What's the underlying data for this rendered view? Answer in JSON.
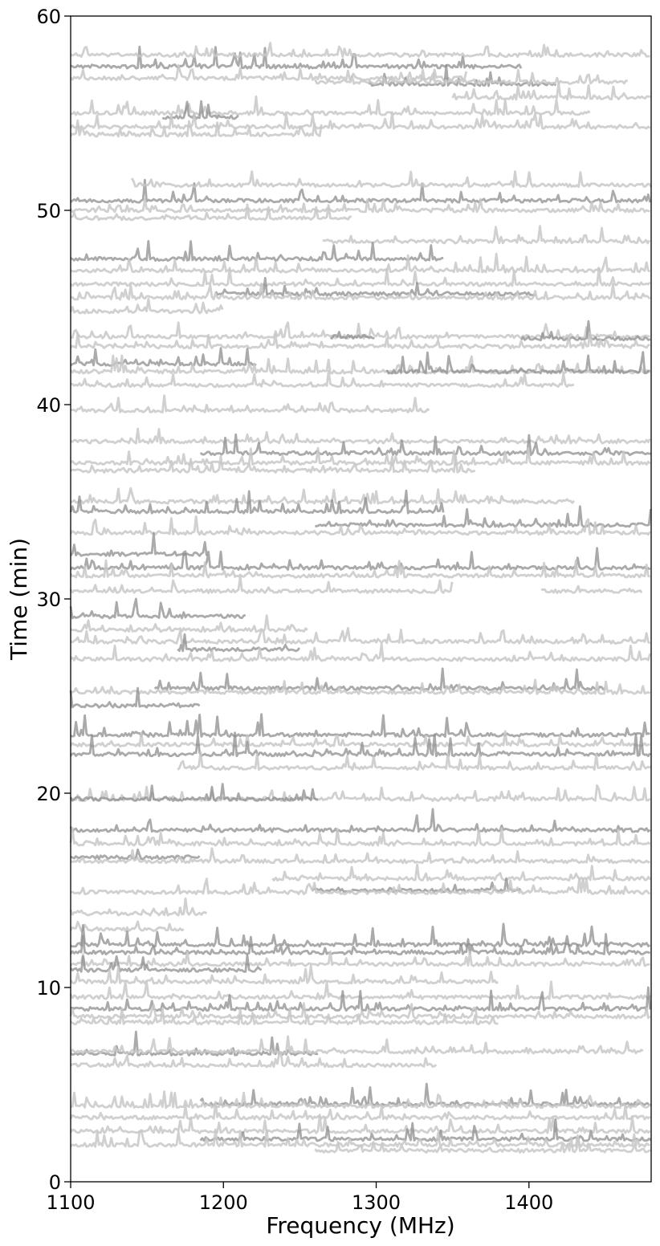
{
  "chart_data": {
    "type": "line",
    "title": "",
    "xlabel": "Frequency (MHz)",
    "ylabel": "Time (min)",
    "xlim": [
      1100,
      1480
    ],
    "ylim": [
      0,
      60
    ],
    "xticks": [
      1100,
      1200,
      1300,
      1400
    ],
    "yticks": [
      0,
      10,
      20,
      30,
      40,
      50,
      60
    ],
    "grid": false,
    "legend": "none",
    "colors": {
      "light_trace": "#c8c8c8",
      "dark_trace": "#8e8e8e",
      "axis": "#000000"
    },
    "series": [
      {
        "freq_range": [
          1100,
          1395
        ],
        "time": 57.4,
        "shade": "dark"
      },
      {
        "freq_range": [
          1100,
          1480
        ],
        "time": 58.0,
        "shade": "light"
      },
      {
        "freq_range": [
          1100,
          1360
        ],
        "time": 56.8,
        "shade": "light"
      },
      {
        "freq_range": [
          1295,
          1418
        ],
        "time": 56.5,
        "shade": "dark"
      },
      {
        "freq_range": [
          1260,
          1465
        ],
        "time": 56.6,
        "shade": "light"
      },
      {
        "freq_range": [
          1350,
          1480
        ],
        "time": 55.8,
        "shade": "light"
      },
      {
        "freq_range": [
          1100,
          1440
        ],
        "time": 55.0,
        "shade": "light"
      },
      {
        "freq_range": [
          1160,
          1210
        ],
        "time": 54.8,
        "shade": "dark"
      },
      {
        "freq_range": [
          1100,
          1480
        ],
        "time": 54.3,
        "shade": "light"
      },
      {
        "freq_range": [
          1100,
          1265
        ],
        "time": 53.9,
        "shade": "light"
      },
      {
        "freq_range": [
          1100,
          1480
        ],
        "time": 50.5,
        "shade": "dark"
      },
      {
        "freq_range": [
          1140,
          1480
        ],
        "time": 51.3,
        "shade": "light"
      },
      {
        "freq_range": [
          1100,
          1480
        ],
        "time": 50.0,
        "shade": "light"
      },
      {
        "freq_range": [
          1100,
          1285
        ],
        "time": 49.6,
        "shade": "light"
      },
      {
        "freq_range": [
          1265,
          1480
        ],
        "time": 48.4,
        "shade": "light"
      },
      {
        "freq_range": [
          1100,
          1345
        ],
        "time": 47.5,
        "shade": "dark"
      },
      {
        "freq_range": [
          1100,
          1480
        ],
        "time": 46.9,
        "shade": "light"
      },
      {
        "freq_range": [
          1100,
          1480
        ],
        "time": 46.2,
        "shade": "light"
      },
      {
        "freq_range": [
          1195,
          1405
        ],
        "time": 45.7,
        "shade": "dark"
      },
      {
        "freq_range": [
          1100,
          1480
        ],
        "time": 45.5,
        "shade": "light"
      },
      {
        "freq_range": [
          1100,
          1200
        ],
        "time": 44.8,
        "shade": "light"
      },
      {
        "freq_range": [
          1100,
          1480
        ],
        "time": 43.5,
        "shade": "light"
      },
      {
        "freq_range": [
          1270,
          1300
        ],
        "time": 43.5,
        "shade": "dark"
      },
      {
        "freq_range": [
          1395,
          1480
        ],
        "time": 43.4,
        "shade": "dark"
      },
      {
        "freq_range": [
          1100,
          1480
        ],
        "time": 43.0,
        "shade": "light"
      },
      {
        "freq_range": [
          1100,
          1222
        ],
        "time": 42.1,
        "shade": "dark"
      },
      {
        "freq_range": [
          1100,
          1480
        ],
        "time": 41.7,
        "shade": "light"
      },
      {
        "freq_range": [
          1307,
          1480
        ],
        "time": 41.7,
        "shade": "dark"
      },
      {
        "freq_range": [
          1100,
          1430
        ],
        "time": 41.0,
        "shade": "light"
      },
      {
        "freq_range": [
          1100,
          1335
        ],
        "time": 39.7,
        "shade": "light"
      },
      {
        "freq_range": [
          1100,
          1480
        ],
        "time": 38.1,
        "shade": "light"
      },
      {
        "freq_range": [
          1185,
          1480
        ],
        "time": 37.5,
        "shade": "dark"
      },
      {
        "freq_range": [
          1100,
          1480
        ],
        "time": 37.0,
        "shade": "light"
      },
      {
        "freq_range": [
          1100,
          1365
        ],
        "time": 36.6,
        "shade": "light"
      },
      {
        "freq_range": [
          1100,
          1430
        ],
        "time": 35.0,
        "shade": "light"
      },
      {
        "freq_range": [
          1100,
          1345
        ],
        "time": 34.5,
        "shade": "dark"
      },
      {
        "freq_range": [
          1260,
          1480
        ],
        "time": 33.8,
        "shade": "dark"
      },
      {
        "freq_range": [
          1100,
          1480
        ],
        "time": 33.4,
        "shade": "light"
      },
      {
        "freq_range": [
          1100,
          1190
        ],
        "time": 32.3,
        "shade": "dark"
      },
      {
        "freq_range": [
          1100,
          1480
        ],
        "time": 31.6,
        "shade": "dark"
      },
      {
        "freq_range": [
          1100,
          1480
        ],
        "time": 31.2,
        "shade": "light"
      },
      {
        "freq_range": [
          1100,
          1350
        ],
        "time": 30.4,
        "shade": "light"
      },
      {
        "freq_range": [
          1408,
          1475
        ],
        "time": 30.4,
        "shade": "light"
      },
      {
        "freq_range": [
          1100,
          1215
        ],
        "time": 29.1,
        "shade": "dark"
      },
      {
        "freq_range": [
          1100,
          1255
        ],
        "time": 28.4,
        "shade": "light"
      },
      {
        "freq_range": [
          1100,
          1480
        ],
        "time": 27.8,
        "shade": "light"
      },
      {
        "freq_range": [
          1170,
          1250
        ],
        "time": 27.4,
        "shade": "dark"
      },
      {
        "freq_range": [
          1100,
          1480
        ],
        "time": 26.9,
        "shade": "light"
      },
      {
        "freq_range": [
          1155,
          1450
        ],
        "time": 25.4,
        "shade": "dark"
      },
      {
        "freq_range": [
          1100,
          1480
        ],
        "time": 25.2,
        "shade": "light"
      },
      {
        "freq_range": [
          1100,
          1185
        ],
        "time": 24.5,
        "shade": "dark"
      },
      {
        "freq_range": [
          1100,
          1480
        ],
        "time": 23.0,
        "shade": "dark"
      },
      {
        "freq_range": [
          1100,
          1480
        ],
        "time": 22.5,
        "shade": "light"
      },
      {
        "freq_range": [
          1100,
          1480
        ],
        "time": 22.0,
        "shade": "dark"
      },
      {
        "freq_range": [
          1170,
          1480
        ],
        "time": 21.3,
        "shade": "light"
      },
      {
        "freq_range": [
          1100,
          1480
        ],
        "time": 19.7,
        "shade": "light"
      },
      {
        "freq_range": [
          1100,
          1262
        ],
        "time": 19.7,
        "shade": "dark"
      },
      {
        "freq_range": [
          1100,
          1480
        ],
        "time": 18.1,
        "shade": "dark"
      },
      {
        "freq_range": [
          1100,
          1480
        ],
        "time": 17.4,
        "shade": "light"
      },
      {
        "freq_range": [
          1100,
          1185
        ],
        "time": 16.7,
        "shade": "dark"
      },
      {
        "freq_range": [
          1100,
          1480
        ],
        "time": 16.5,
        "shade": "light"
      },
      {
        "freq_range": [
          1232,
          1480
        ],
        "time": 15.6,
        "shade": "light"
      },
      {
        "freq_range": [
          1258,
          1395
        ],
        "time": 15.0,
        "shade": "dark"
      },
      {
        "freq_range": [
          1100,
          1480
        ],
        "time": 14.9,
        "shade": "light"
      },
      {
        "freq_range": [
          1100,
          1190
        ],
        "time": 13.8,
        "shade": "light"
      },
      {
        "freq_range": [
          1100,
          1175
        ],
        "time": 13.0,
        "shade": "light"
      },
      {
        "freq_range": [
          1100,
          1480
        ],
        "time": 12.2,
        "shade": "dark"
      },
      {
        "freq_range": [
          1100,
          1480
        ],
        "time": 11.8,
        "shade": "dark"
      },
      {
        "freq_range": [
          1100,
          1480
        ],
        "time": 11.2,
        "shade": "light"
      },
      {
        "freq_range": [
          1100,
          1225
        ],
        "time": 10.9,
        "shade": "dark"
      },
      {
        "freq_range": [
          1100,
          1380
        ],
        "time": 10.3,
        "shade": "light"
      },
      {
        "freq_range": [
          1100,
          1480
        ],
        "time": 9.5,
        "shade": "light"
      },
      {
        "freq_range": [
          1100,
          1480
        ],
        "time": 8.9,
        "shade": "dark"
      },
      {
        "freq_range": [
          1100,
          1480
        ],
        "time": 8.5,
        "shade": "light"
      },
      {
        "freq_range": [
          1100,
          1380
        ],
        "time": 8.2,
        "shade": "light"
      },
      {
        "freq_range": [
          1100,
          1262
        ],
        "time": 6.6,
        "shade": "dark"
      },
      {
        "freq_range": [
          1100,
          1475
        ],
        "time": 6.7,
        "shade": "light"
      },
      {
        "freq_range": [
          1100,
          1340
        ],
        "time": 6.0,
        "shade": "light"
      },
      {
        "freq_range": [
          1185,
          1480
        ],
        "time": 4.0,
        "shade": "dark"
      },
      {
        "freq_range": [
          1100,
          1480
        ],
        "time": 3.9,
        "shade": "light"
      },
      {
        "freq_range": [
          1100,
          1480
        ],
        "time": 3.3,
        "shade": "light"
      },
      {
        "freq_range": [
          1100,
          1480
        ],
        "time": 2.6,
        "shade": "light"
      },
      {
        "freq_range": [
          1185,
          1480
        ],
        "time": 2.2,
        "shade": "dark"
      },
      {
        "freq_range": [
          1100,
          1480
        ],
        "time": 1.9,
        "shade": "light"
      },
      {
        "freq_range": [
          1260,
          1480
        ],
        "time": 1.6,
        "shade": "light"
      }
    ]
  }
}
